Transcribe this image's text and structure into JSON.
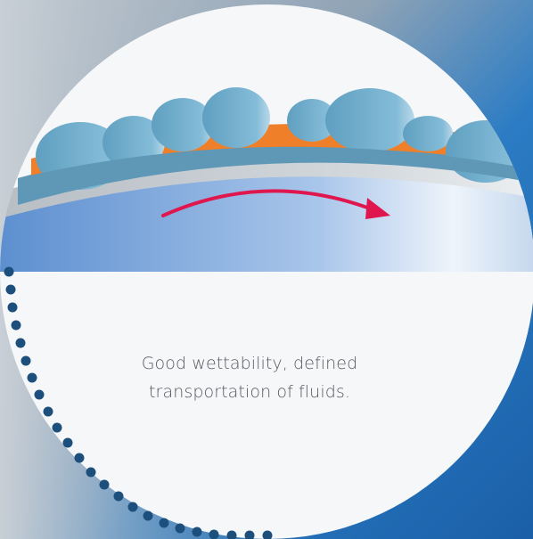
{
  "caption": {
    "line1": "Good wettability, defined",
    "line2": "transportation of fluids."
  },
  "colors": {
    "background_blue": "#1e6fb8",
    "circle_fill": "#f6f7f8",
    "coating_orange": "#f07f2a",
    "droplet_blue": "#6aa8c9",
    "arrow_red": "#e0174f",
    "dots_navy": "#1d4f7d"
  },
  "icons": {
    "arrow": "curved-arrow-icon",
    "dots": "dotted-arc"
  }
}
